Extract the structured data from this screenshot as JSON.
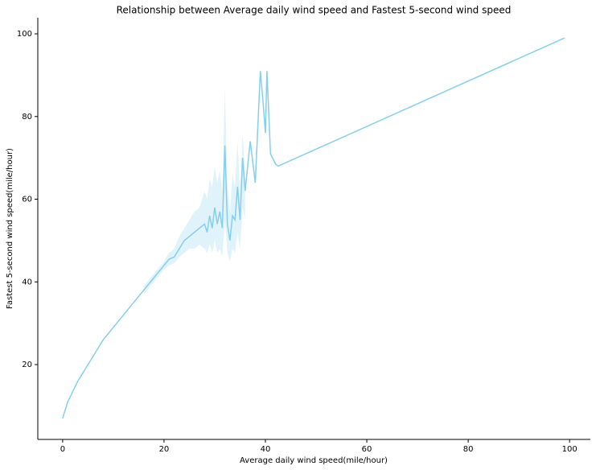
{
  "chart_data": {
    "type": "line",
    "title": "Relationship between Average daily wind speed and Fastest 5-second wind speed",
    "x_label": "Average daily wind speed(mile/hour)",
    "y_label": "Fastest 5-second wind speed(mile/hour)",
    "color": "#87ceeb",
    "x": [
      0,
      0.5,
      1,
      2,
      3,
      4,
      5,
      6,
      7,
      8,
      9,
      10,
      11,
      12,
      13,
      14,
      15,
      16,
      17,
      18,
      19,
      20,
      21,
      22,
      23,
      24,
      25,
      26,
      27,
      28,
      28.5,
      29,
      29.5,
      30,
      30.5,
      31,
      31.5,
      32,
      32.5,
      33,
      33.5,
      34,
      34.5,
      35,
      35.5,
      36,
      37,
      38,
      39,
      39.5,
      40,
      40.3,
      41,
      42,
      42.5,
      99
    ],
    "values": [
      7,
      9,
      11,
      13.5,
      16,
      18,
      20,
      22,
      24,
      26,
      27.5,
      29,
      30.5,
      32,
      33.5,
      35,
      36.5,
      38,
      39.5,
      41,
      42.5,
      44,
      45.5,
      46,
      48,
      50,
      51,
      52,
      53,
      54,
      52,
      56,
      53,
      58,
      54,
      57,
      53,
      73,
      54,
      50,
      56,
      55,
      63,
      55,
      70,
      62,
      74,
      64,
      91,
      84,
      76,
      91,
      71,
      68.5,
      68,
      99
    ],
    "ci_lower": [
      null,
      null,
      null,
      null,
      null,
      null,
      null,
      null,
      null,
      null,
      null,
      null,
      null,
      null,
      null,
      null,
      null,
      37,
      38.5,
      40,
      41.5,
      43,
      44,
      44.5,
      46,
      47,
      48,
      48,
      49,
      48,
      47,
      49,
      47,
      50,
      47,
      48,
      46,
      55,
      47,
      45,
      48,
      47,
      52,
      48,
      58,
      55,
      null,
      null,
      null,
      null,
      null,
      null,
      null,
      null,
      null,
      null
    ],
    "ci_upper": [
      null,
      null,
      null,
      null,
      null,
      null,
      null,
      null,
      null,
      null,
      null,
      null,
      null,
      null,
      null,
      null,
      null,
      39,
      40.5,
      42,
      43.5,
      45,
      47,
      48,
      51,
      53,
      55,
      57,
      58,
      62,
      60,
      65,
      63,
      68,
      64,
      67,
      62,
      87,
      64,
      57,
      66,
      63,
      74,
      62,
      76,
      66,
      null,
      null,
      null,
      null,
      null,
      null,
      null,
      null,
      null,
      null
    ],
    "xlim": [
      -4.9,
      104.1
    ],
    "xticks": [
      0,
      20,
      40,
      60,
      80,
      100
    ],
    "ylim": [
      1.9,
      103.9
    ],
    "yticks": [
      20,
      40,
      60,
      80,
      100
    ]
  }
}
